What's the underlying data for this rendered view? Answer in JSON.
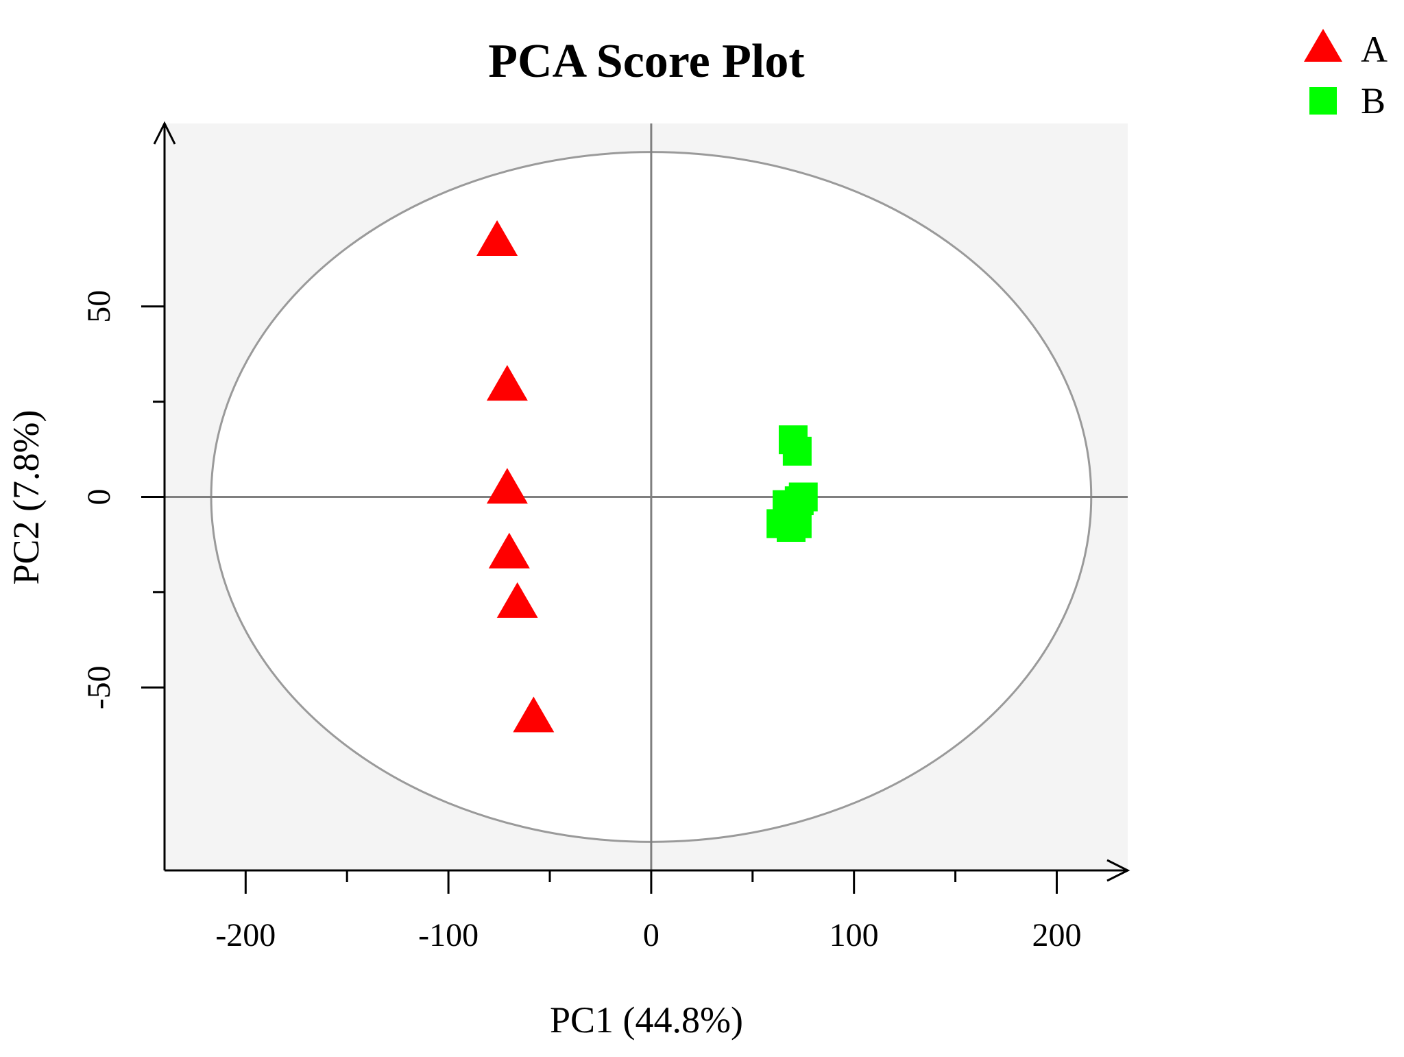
{
  "chart_data": {
    "type": "scatter",
    "title": "PCA Score Plot",
    "xlabel": "PC1 (44.8%)",
    "ylabel": "PC2 (7.8%)",
    "xlim": [
      -240,
      235
    ],
    "ylim": [
      -98,
      98
    ],
    "x_ticks": [
      -200,
      -100,
      0,
      100,
      200
    ],
    "x_minor_ticks": [
      -150,
      -50,
      50,
      150
    ],
    "y_ticks": [
      -50,
      0,
      50
    ],
    "y_minor_ticks": [
      -25,
      25
    ],
    "grid": false,
    "background_panel": true,
    "reference_lines": {
      "x": 0,
      "y": 0
    },
    "ellipse": {
      "cx": 0,
      "cy": 0,
      "rx": 217,
      "ry": 90.5
    },
    "legend_position": "top-right",
    "series": [
      {
        "name": "A",
        "marker": "triangle",
        "color": "#ff0000",
        "points": [
          {
            "x": -76,
            "y": 67
          },
          {
            "x": -71,
            "y": 29
          },
          {
            "x": -71,
            "y": 2
          },
          {
            "x": -70,
            "y": -15
          },
          {
            "x": -66,
            "y": -28
          },
          {
            "x": -58,
            "y": -58
          }
        ]
      },
      {
        "name": "B",
        "marker": "square",
        "color": "#00ff00",
        "points": [
          {
            "x": 70,
            "y": 15
          },
          {
            "x": 72,
            "y": 12
          },
          {
            "x": 73,
            "y": -1
          },
          {
            "x": 75,
            "y": 0
          },
          {
            "x": 67,
            "y": -2
          },
          {
            "x": 64,
            "y": -7
          },
          {
            "x": 69,
            "y": -8
          },
          {
            "x": 72,
            "y": -7
          }
        ]
      }
    ],
    "colors": {
      "panel": "#f4f4f4",
      "ellipse_fill": "#ffffff",
      "ellipse_stroke": "#9a9a9a",
      "reference_line": "#7f7f7f",
      "axis": "#000000"
    }
  }
}
